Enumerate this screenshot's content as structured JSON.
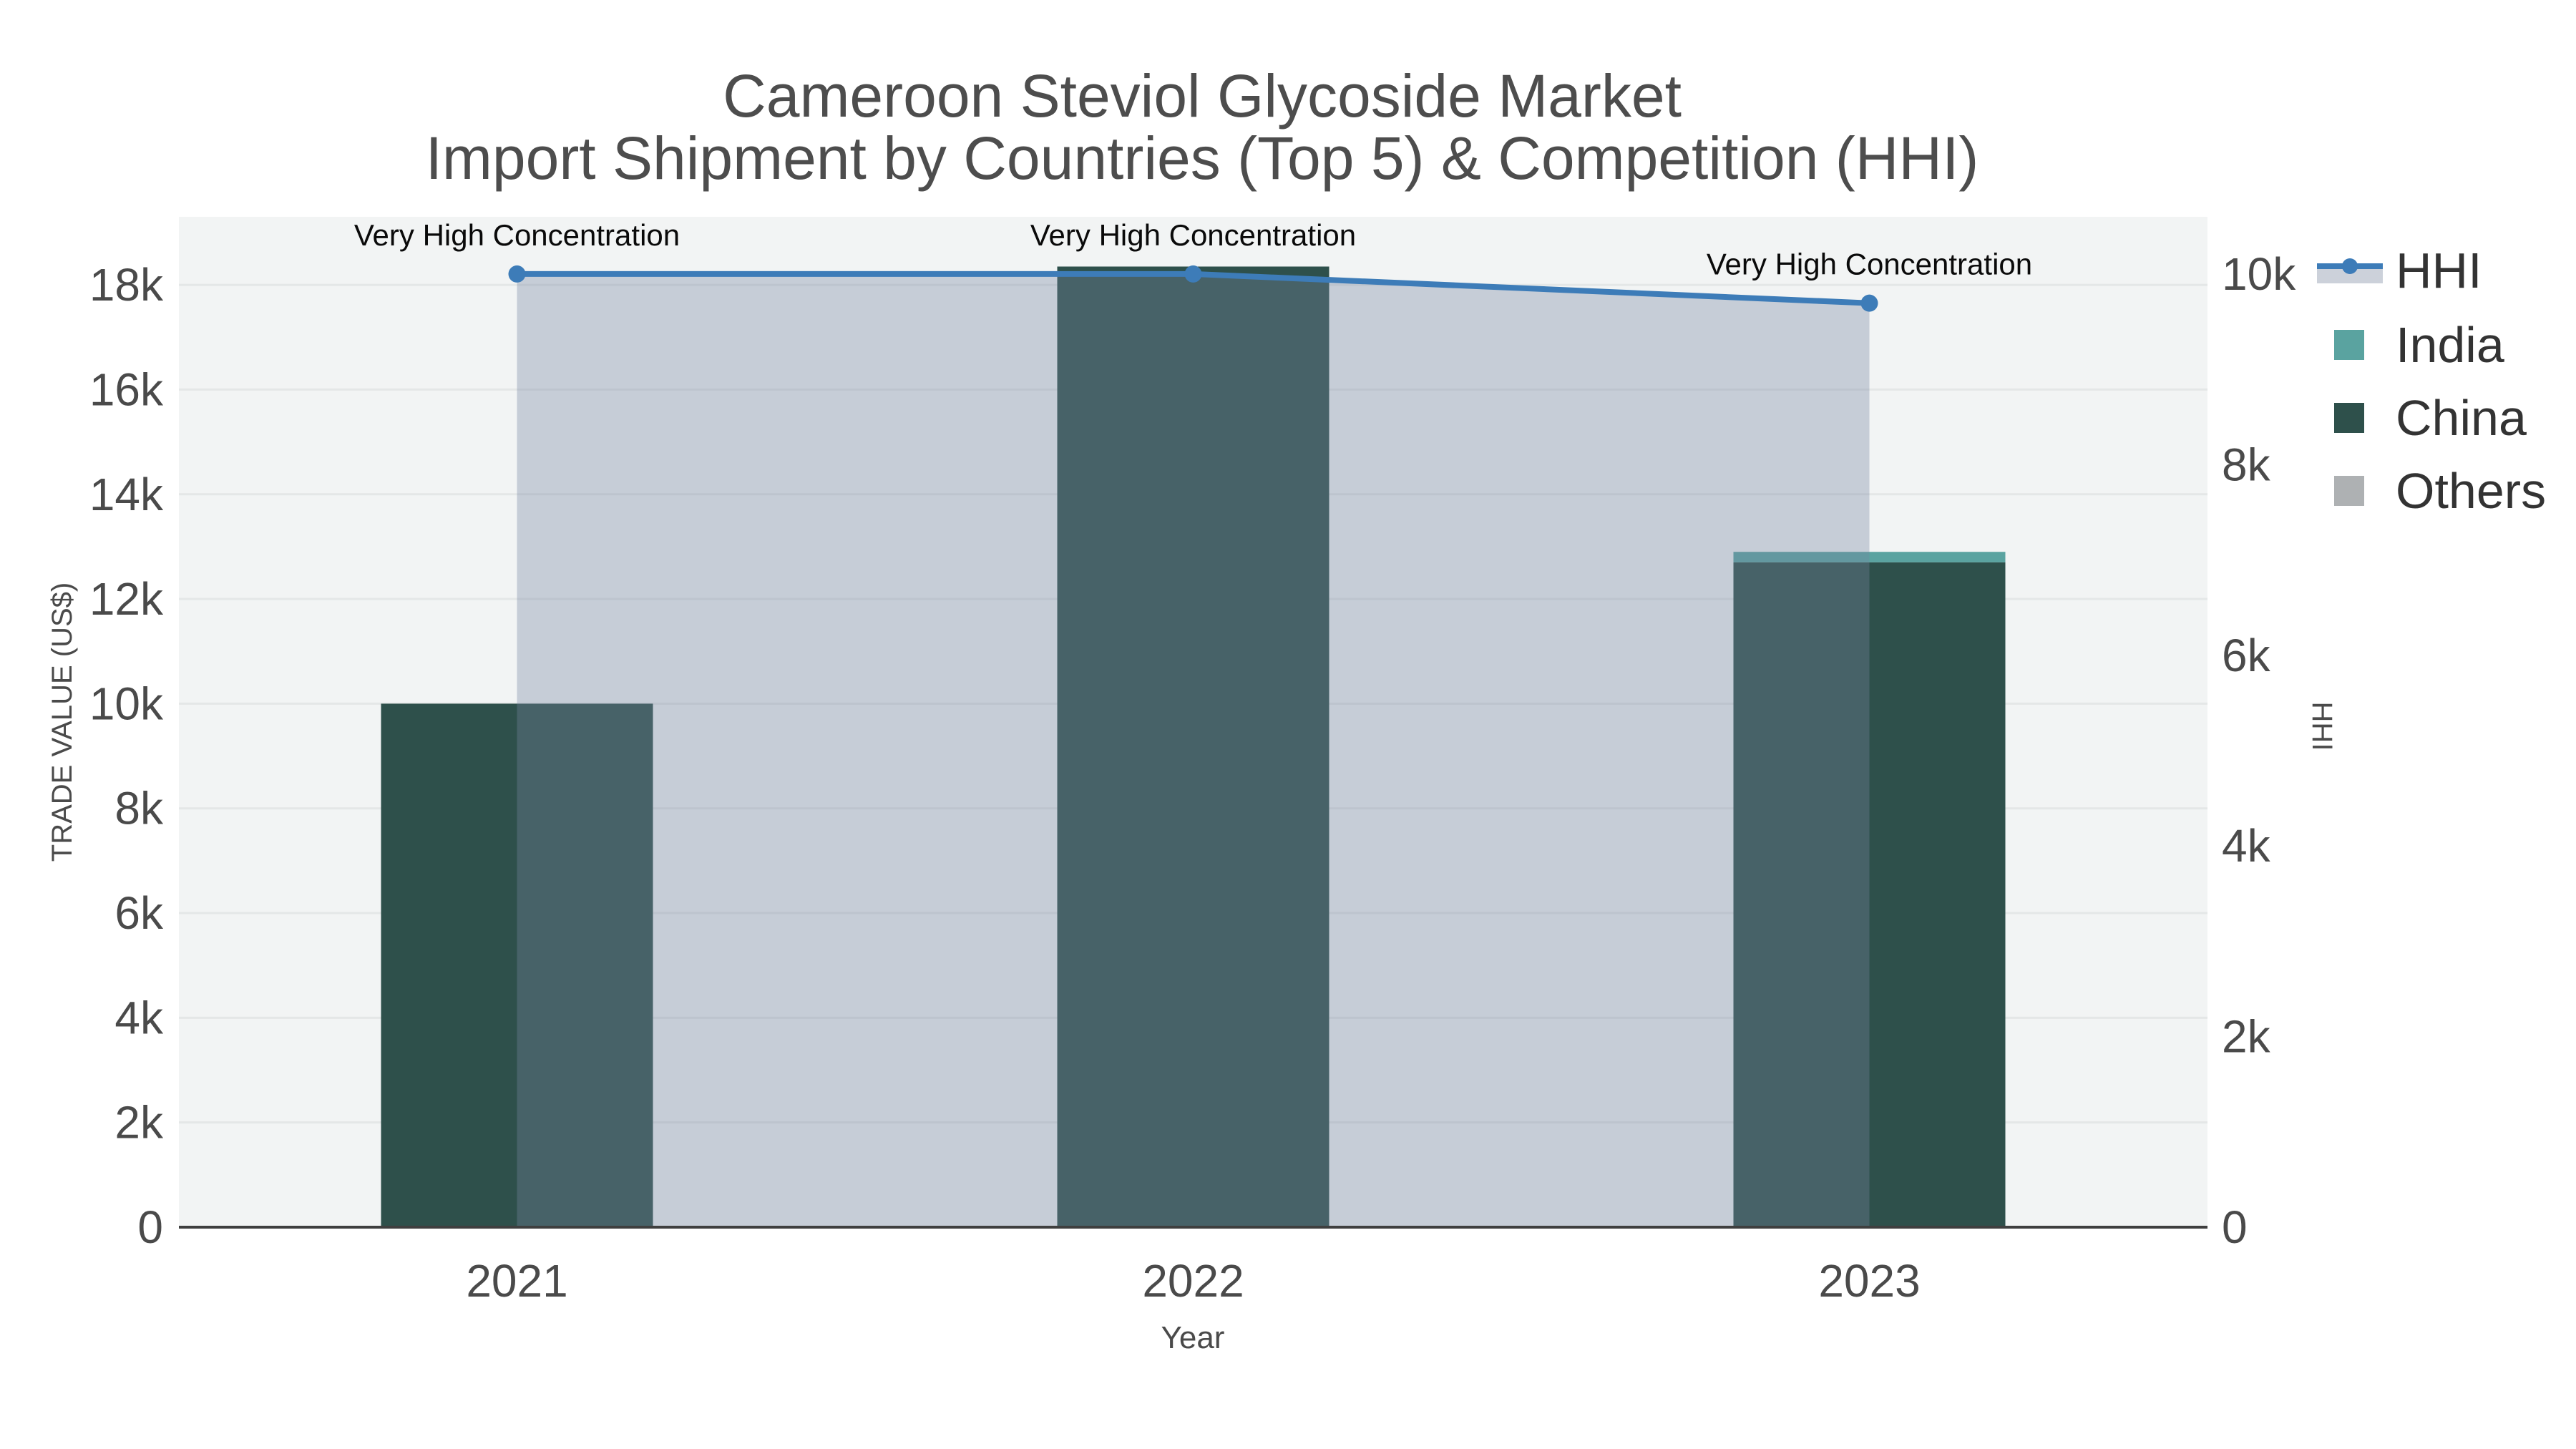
{
  "title": {
    "line1": "Cameroon Steviol Glycoside Market",
    "line2": "Import Shipment by Countries (Top 5) & Competition (HHI)"
  },
  "chart_data": {
    "type": "bar+line",
    "categories": [
      "2021",
      "2022",
      "2023"
    ],
    "series": [
      {
        "name": "HHI",
        "type": "line+area",
        "axis": "right",
        "color": "#3d7cb8",
        "area_color": "rgba(118,132,161,0.35)",
        "values": [
          10000,
          10000,
          9694
        ]
      },
      {
        "name": "India",
        "type": "bar",
        "axis": "left",
        "color": "#5aa3a0",
        "values": [
          0,
          0,
          200
        ]
      },
      {
        "name": "China",
        "type": "bar",
        "axis": "left",
        "color": "#2e504b",
        "values": [
          10000,
          18350,
          12700
        ]
      },
      {
        "name": "Others",
        "type": "bar",
        "axis": "left",
        "color": "#aeb1b3",
        "values": [
          0,
          0,
          0
        ]
      }
    ],
    "stack_order": [
      "China",
      "India",
      "Others"
    ],
    "annotations": [
      {
        "text": "Very High Concentration",
        "category": "2021"
      },
      {
        "text": "Very High Concentration",
        "category": "2022"
      },
      {
        "text": "Very High Concentration",
        "category": "2023"
      }
    ],
    "xlabel": "Year",
    "ylabel_left": "TRADE VALUE (US$)",
    "ylabel_right": "HHI",
    "yaxis_left": {
      "tick_labels": [
        "0",
        "2k",
        "4k",
        "6k",
        "8k",
        "10k",
        "12k",
        "14k",
        "16k",
        "18k"
      ],
      "tick_values": [
        0,
        2000,
        4000,
        6000,
        8000,
        10000,
        12000,
        14000,
        16000,
        18000
      ],
      "range": [
        0,
        19300
      ]
    },
    "yaxis_right": {
      "tick_labels": [
        "0",
        "2k",
        "4k",
        "6k",
        "8k",
        "10k"
      ],
      "tick_values": [
        0,
        2000,
        4000,
        6000,
        8000,
        10000
      ],
      "range": [
        0,
        10600
      ]
    },
    "legend": {
      "position": "top-right",
      "items": [
        "HHI",
        "India",
        "China",
        "Others"
      ]
    },
    "grid": true,
    "colors": {
      "plot_background": "#f2f4f4",
      "figure_background": "#ffffff",
      "gridline": "#e4e7e7",
      "axis_line": "#3f3f3f",
      "tick_text": "#4a4a4a",
      "title_text": "#4d4d4d",
      "annotation_text": "#0a0a0a",
      "legend_text": "#333333",
      "hhi_legend_band": "#ccd1da"
    }
  }
}
